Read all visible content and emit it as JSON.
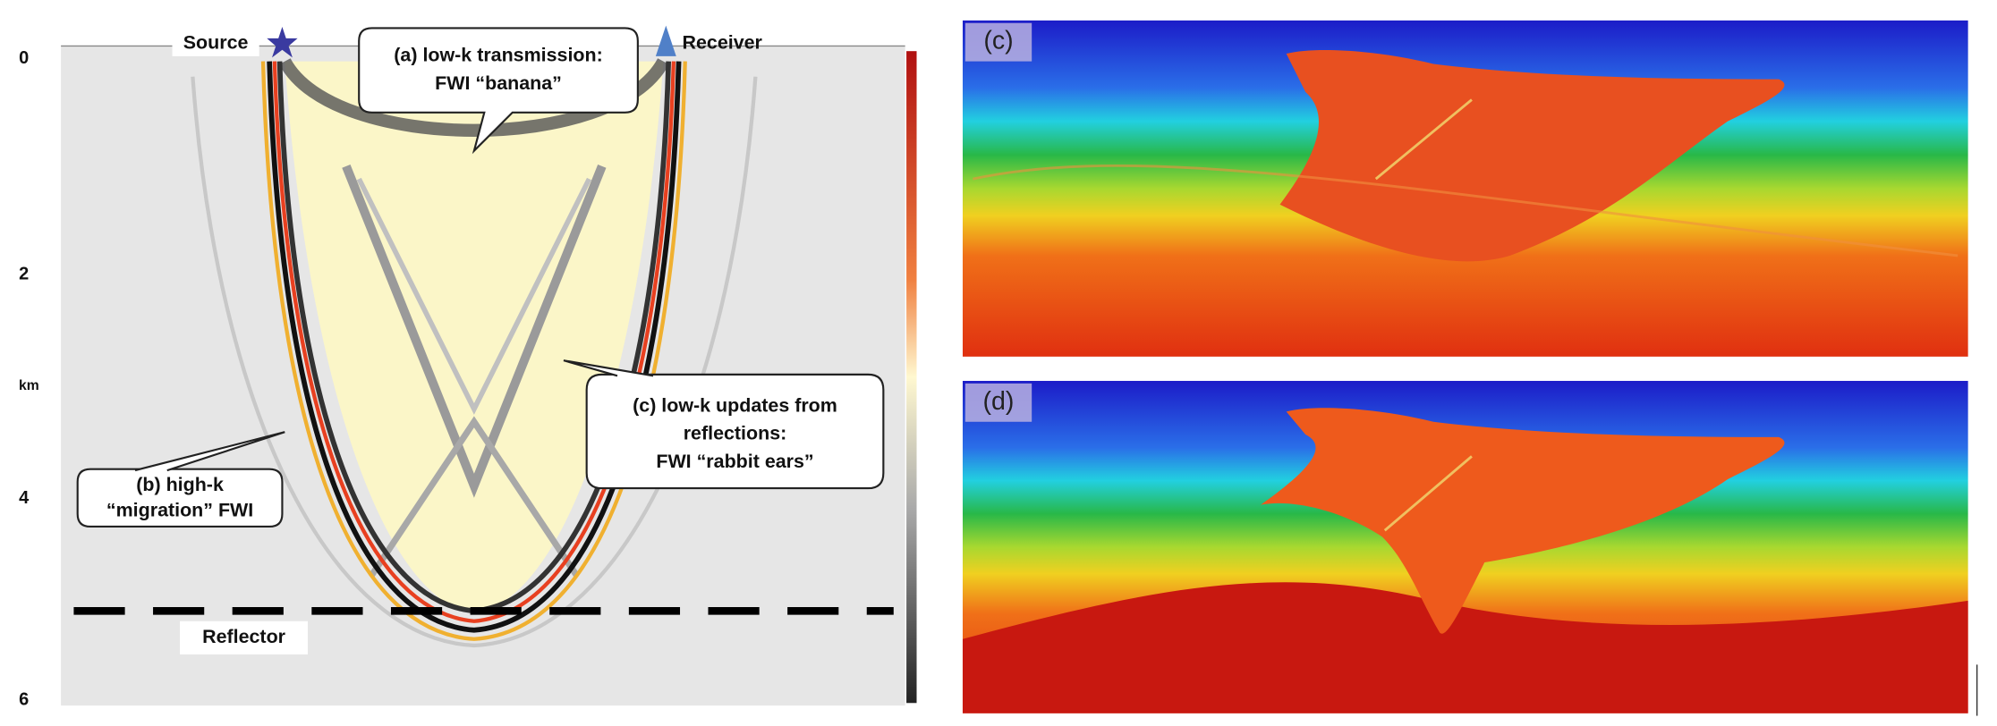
{
  "left_panel": {
    "depth_unit": "km",
    "depth_labels": [
      "0",
      "2",
      "4",
      "6"
    ],
    "source": "Source",
    "receiver": "Receiver",
    "callouts": [
      {
        "lines": [
          "(a)  low-k transmission:",
          "FWI “banana”"
        ]
      },
      {
        "lines": [
          "(b) high-k",
          "“migration” FWI"
        ]
      },
      {
        "lines": [
          "(c) low-k updates from",
          "reflections:",
          "FWI “rabbit ears”"
        ]
      }
    ],
    "reflector": "Reflector"
  },
  "right_panels": [
    {
      "label": "(c)"
    },
    {
      "label": "(d)"
    }
  ]
}
